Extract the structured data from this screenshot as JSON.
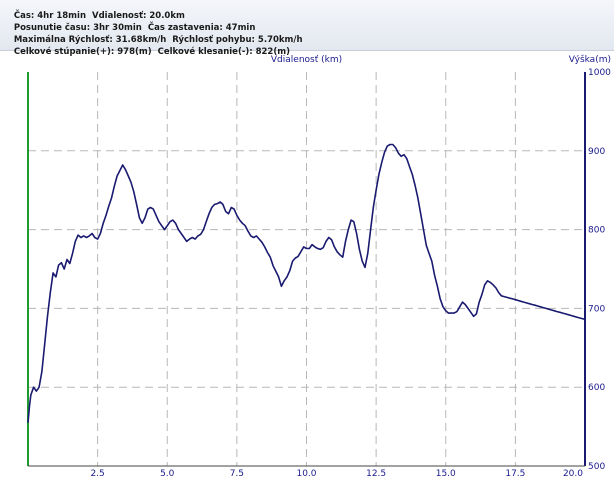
{
  "stats": {
    "line1": [
      "Čas: 4hr 18min",
      "Vdialenosť: 20.0km"
    ],
    "line2": [
      "Posunutie času: 3hr 30min",
      "Čas zastavenia: 47min"
    ],
    "line3": [
      "Maximálna Rýchlosť: 31.68km/h",
      "Rýchlosť pohybu: 5.70km/h"
    ],
    "line4": [
      "Celkové stúpanie(+): 978(m)",
      "Celkové klesanie(-): 822(m)"
    ]
  },
  "colors": {
    "line": "#1a1a70",
    "left_axis": "#1f9a2e",
    "right_axis": "#1a1a70",
    "grid": "#b8b8b8",
    "label": "#1a1a8c"
  },
  "chart_data": {
    "type": "line",
    "xlabel": "Vdialenosť (km)",
    "ylabel": "Výška(m)",
    "xlim": [
      0,
      20
    ],
    "ylim": [
      500,
      1000
    ],
    "x_ticks": [
      "2.5",
      "5.0",
      "7.5",
      "10.0",
      "12.5",
      "15.0",
      "17.5",
      "20.0"
    ],
    "y_ticks": [
      "1000",
      "900",
      "800",
      "700",
      "600",
      "500"
    ],
    "grid": true,
    "series": [
      {
        "x": [
          0.0,
          0.05,
          0.1,
          0.2,
          0.3,
          0.4,
          0.5,
          0.6,
          0.7,
          0.8,
          0.9,
          1.0,
          1.1,
          1.2,
          1.3,
          1.4,
          1.5,
          1.6,
          1.7,
          1.8,
          1.9,
          2.0,
          2.1,
          2.2,
          2.3,
          2.4,
          2.5,
          2.6,
          2.7,
          2.8,
          2.9,
          3.0,
          3.1,
          3.2,
          3.3,
          3.4,
          3.5,
          3.6,
          3.7,
          3.8,
          3.9,
          4.0,
          4.1,
          4.2,
          4.3,
          4.4,
          4.5,
          4.6,
          4.7,
          4.8,
          4.9,
          5.0,
          5.1,
          5.2,
          5.3,
          5.4,
          5.5,
          5.6,
          5.7,
          5.8,
          5.9,
          6.0,
          6.1,
          6.2,
          6.3,
          6.4,
          6.5,
          6.6,
          6.7,
          6.8,
          6.9,
          7.0,
          7.1,
          7.2,
          7.3,
          7.4,
          7.5,
          7.6,
          7.7,
          7.8,
          7.9,
          8.0,
          8.1,
          8.2,
          8.3,
          8.4,
          8.5,
          8.6,
          8.7,
          8.8,
          8.9,
          9.0,
          9.1,
          9.2,
          9.3,
          9.4,
          9.5,
          9.6,
          9.7,
          9.8,
          9.9,
          10.0,
          10.1,
          10.2,
          10.3,
          10.4,
          10.5,
          10.6,
          10.7,
          10.8,
          10.9,
          11.0,
          11.1,
          11.2,
          11.3,
          11.4,
          11.5,
          11.6,
          11.7,
          11.8,
          11.9,
          12.0,
          12.1,
          12.2,
          12.3,
          12.4,
          12.5,
          12.6,
          12.7,
          12.8,
          12.9,
          13.0,
          13.1,
          13.2,
          13.3,
          13.4,
          13.5,
          13.6,
          13.7,
          13.8,
          13.9,
          14.0,
          14.1,
          14.2,
          14.3,
          14.4,
          14.5,
          14.6,
          14.7,
          14.8,
          14.9,
          15.0,
          15.1,
          15.2,
          15.3,
          15.4,
          15.5,
          15.6,
          15.7,
          15.8,
          15.9,
          16.0,
          16.1,
          16.2,
          16.3,
          16.4,
          16.5,
          16.6,
          16.7,
          16.8,
          16.9,
          17.0,
          17.1,
          17.2,
          17.3,
          17.4,
          17.5,
          17.6,
          17.7,
          17.8,
          17.9,
          18.0,
          18.1,
          18.2,
          18.3,
          18.4,
          18.5,
          18.6,
          18.7,
          18.8,
          18.9,
          19.0,
          19.1,
          19.2,
          19.3,
          19.4,
          19.5,
          19.6,
          19.7,
          19.8,
          19.9,
          20.0
        ],
        "values": [
          555,
          575,
          590,
          600,
          595,
          600,
          620,
          655,
          690,
          720,
          745,
          740,
          755,
          758,
          750,
          762,
          757,
          770,
          785,
          793,
          790,
          792,
          790,
          792,
          795,
          790,
          788,
          795,
          808,
          818,
          830,
          840,
          855,
          868,
          875,
          882,
          876,
          868,
          860,
          848,
          832,
          815,
          808,
          815,
          826,
          828,
          826,
          818,
          810,
          805,
          800,
          805,
          810,
          812,
          808,
          800,
          795,
          790,
          785,
          788,
          790,
          788,
          792,
          794,
          800,
          810,
          820,
          828,
          832,
          833,
          835,
          832,
          823,
          820,
          828,
          826,
          818,
          812,
          808,
          805,
          798,
          792,
          790,
          792,
          788,
          784,
          778,
          771,
          765,
          754,
          747,
          740,
          728,
          735,
          740,
          748,
          760,
          764,
          766,
          772,
          778,
          776,
          776,
          781,
          778,
          776,
          775,
          777,
          785,
          790,
          787,
          778,
          772,
          768,
          765,
          785,
          800,
          812,
          810,
          795,
          775,
          760,
          752,
          770,
          800,
          828,
          850,
          870,
          885,
          898,
          906,
          908,
          908,
          904,
          897,
          893,
          895,
          890,
          880,
          870,
          856,
          840,
          820,
          800,
          780,
          770,
          760,
          742,
          728,
          712,
          702,
          697,
          694,
          694,
          694,
          696,
          702,
          708,
          705,
          700,
          695,
          690,
          693,
          708,
          718,
          730,
          735,
          733,
          730,
          726,
          720,
          716,
          715,
          714,
          713,
          712,
          711,
          710,
          709,
          708,
          707,
          706,
          705,
          704,
          703,
          702,
          701,
          700,
          699,
          698,
          697,
          696,
          695,
          694,
          693,
          692,
          691,
          690,
          689,
          688,
          687,
          686
        ]
      }
    ]
  }
}
